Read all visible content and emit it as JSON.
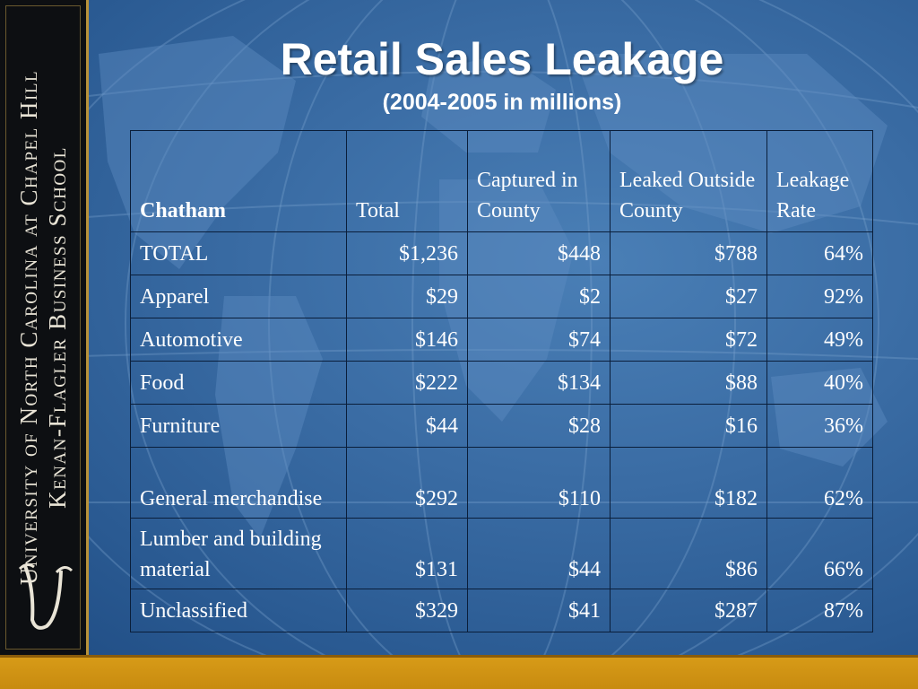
{
  "slide": {
    "title": "Retail Sales Leakage",
    "subtitle": "(2004-2005 in millions)"
  },
  "sidebar": {
    "line1": "University of North Carolina at Chapel Hill",
    "line2": "Kenan-Flagler Business School",
    "logo_icon": "unc-monogram-icon"
  },
  "table": {
    "headers": [
      "Chatham",
      "Total",
      "Captured in County",
      "Leaked Outside County",
      "Leakage Rate"
    ],
    "rows": [
      [
        "TOTAL",
        "$1,236",
        "$448",
        "$788",
        "64%"
      ],
      [
        "Apparel",
        "$29",
        "$2",
        "$27",
        "92%"
      ],
      [
        "Automotive",
        "$146",
        "$74",
        "$72",
        "49%"
      ],
      [
        "Food",
        "$222",
        "$134",
        "$88",
        "40%"
      ],
      [
        "Furniture",
        "$44",
        "$28",
        "$16",
        "36%"
      ],
      [
        "General merchandise",
        "$292",
        "$110",
        "$182",
        "62%"
      ],
      [
        "Lumber and building material",
        "$131",
        "$44",
        "$86",
        "66%"
      ],
      [
        "Unclassified",
        "$329",
        "$41",
        "$287",
        "87%"
      ]
    ]
  },
  "colors": {
    "background": "#3a6ca4",
    "sidebar": "#0d0f12",
    "accent": "#d89c18",
    "text": "#ffffff"
  }
}
